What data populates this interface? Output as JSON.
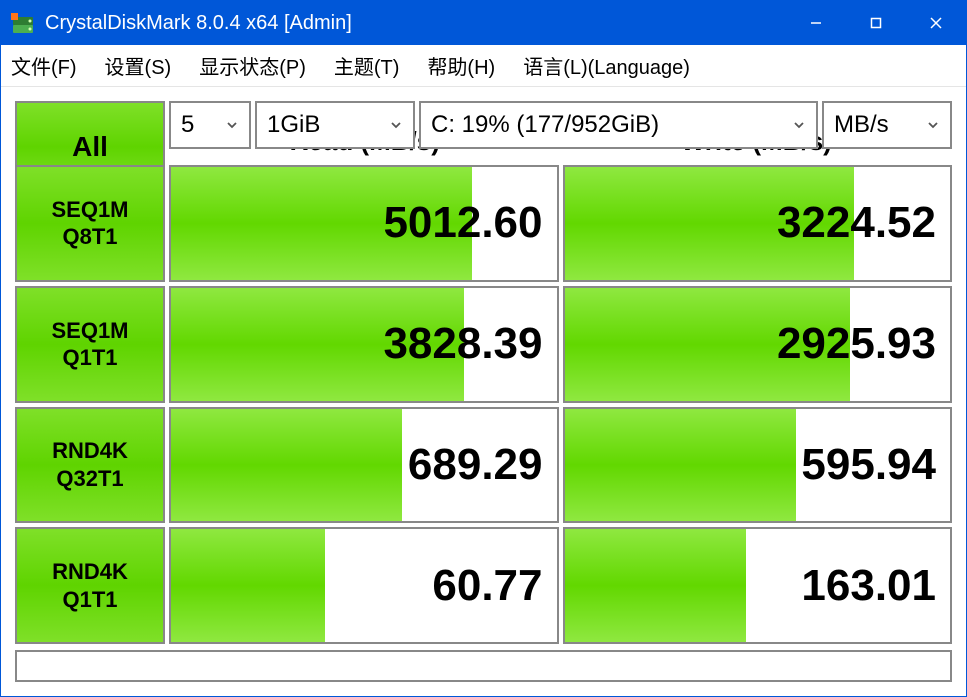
{
  "window": {
    "title": "CrystalDiskMark 8.0.4 x64 [Admin]",
    "titlebar_bg": "#0057d8",
    "icon_colors": {
      "disk": "#2e7d32",
      "indicator": "#ff5722"
    }
  },
  "menu": {
    "file": "文件(F)",
    "settings": "设置(S)",
    "display": "显示状态(P)",
    "theme": "主题(T)",
    "help": "帮助(H)",
    "language": "语言(L)(Language)"
  },
  "controls": {
    "all_label": "All",
    "count": "5",
    "size": "1GiB",
    "drive": "C: 19% (177/952GiB)",
    "unit": "MB/s"
  },
  "headers": {
    "read": "Read (MB/s)",
    "write": "Write (MB/s)"
  },
  "tests": [
    {
      "line1": "SEQ1M",
      "line2": "Q8T1",
      "read": "5012.60",
      "write": "3224.52",
      "read_pct": 78,
      "write_pct": 75
    },
    {
      "line1": "SEQ1M",
      "line2": "Q1T1",
      "read": "3828.39",
      "write": "2925.93",
      "read_pct": 76,
      "write_pct": 74
    },
    {
      "line1": "RND4K",
      "line2": "Q32T1",
      "read": "689.29",
      "write": "595.94",
      "read_pct": 60,
      "write_pct": 60
    },
    {
      "line1": "RND4K",
      "line2": "Q1T1",
      "read": "60.77",
      "write": "163.01",
      "read_pct": 40,
      "write_pct": 47
    }
  ],
  "colors": {
    "button_gradient_top": "#7fe028",
    "button_gradient_mid": "#5fd400",
    "bar_gradient_top": "#8fe840",
    "bar_gradient_mid": "#62d800",
    "border": "#888888",
    "background": "#ffffff",
    "text": "#000000"
  },
  "typography": {
    "title_fontsize": 20,
    "menu_fontsize": 20,
    "header_fontsize": 26,
    "result_fontsize": 44,
    "button_fontsize": 22,
    "all_fontsize": 28
  }
}
